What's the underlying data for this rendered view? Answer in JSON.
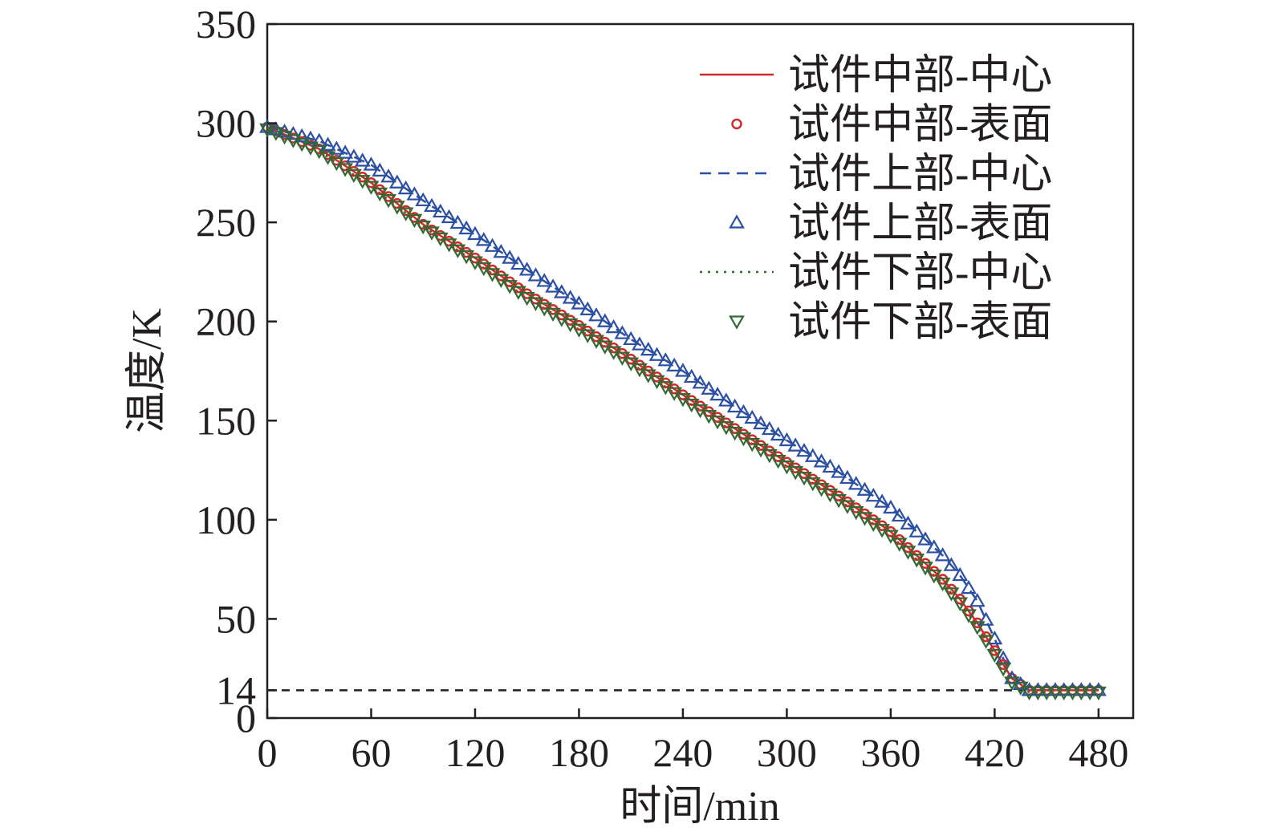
{
  "chart_data": {
    "type": "line",
    "title": "",
    "xlabel": "时间/min",
    "ylabel": "温度/K",
    "xlim": [
      0,
      500
    ],
    "ylim": [
      0,
      350
    ],
    "xticks": [
      0,
      60,
      120,
      180,
      240,
      300,
      360,
      420,
      480
    ],
    "yticks": [
      0,
      14,
      50,
      100,
      150,
      200,
      250,
      300,
      350
    ],
    "grid": false,
    "legend_position": "top-right",
    "reference_lines": [
      {
        "y": 14,
        "style": "dashed",
        "color": "#231f20"
      }
    ],
    "series": [
      {
        "name": "试件中部-中心",
        "style": "solid-line",
        "color": "#d12a2a",
        "x": [
          0,
          30,
          60,
          90,
          120,
          150,
          180,
          210,
          240,
          270,
          300,
          330,
          360,
          390,
          400,
          410,
          420,
          430,
          440,
          450,
          460,
          470,
          480
        ],
        "y": [
          298,
          287,
          270,
          249,
          232,
          214,
          198,
          181,
          163,
          146,
          129,
          112,
          94,
          70,
          60,
          48,
          34,
          20,
          14,
          14,
          14,
          14,
          14
        ]
      },
      {
        "name": "试件中部-表面",
        "style": "circle-marker",
        "color": "#d12a2a",
        "x": [
          0,
          30,
          60,
          90,
          120,
          150,
          180,
          210,
          240,
          270,
          300,
          330,
          360,
          390,
          400,
          410,
          420,
          430,
          440,
          450,
          460,
          470,
          480
        ],
        "y": [
          298,
          287,
          270,
          249,
          232,
          214,
          198,
          181,
          163,
          146,
          129,
          112,
          94,
          70,
          60,
          48,
          34,
          20,
          14,
          14,
          14,
          14,
          14
        ]
      },
      {
        "name": "试件上部-中心",
        "style": "dashed-line",
        "color": "#2b4fa3",
        "x": [
          0,
          30,
          60,
          90,
          120,
          150,
          180,
          210,
          240,
          270,
          300,
          330,
          360,
          390,
          400,
          410,
          420,
          430,
          440,
          450,
          460,
          470,
          480
        ],
        "y": [
          298,
          291,
          279,
          261,
          244,
          226,
          209,
          191,
          175,
          157,
          140,
          124,
          106,
          82,
          72,
          59,
          40,
          20,
          14,
          14,
          14,
          14,
          14
        ]
      },
      {
        "name": "试件上部-表面",
        "style": "triangle-up-marker",
        "color": "#2b4fa3",
        "x": [
          0,
          30,
          60,
          90,
          120,
          150,
          180,
          210,
          240,
          270,
          300,
          330,
          360,
          390,
          400,
          410,
          420,
          430,
          440,
          450,
          460,
          470,
          480
        ],
        "y": [
          298,
          291,
          279,
          261,
          244,
          226,
          209,
          191,
          175,
          157,
          140,
          124,
          106,
          82,
          72,
          59,
          40,
          20,
          14,
          14,
          14,
          14,
          14
        ]
      },
      {
        "name": "试件下部-中心",
        "style": "dotted-line",
        "color": "#2f6b32",
        "x": [
          0,
          30,
          60,
          90,
          120,
          150,
          180,
          210,
          240,
          270,
          300,
          330,
          360,
          390,
          400,
          410,
          420,
          430,
          440,
          450,
          460,
          470,
          480
        ],
        "y": [
          297,
          286,
          268,
          248,
          230,
          212,
          196,
          179,
          161,
          144,
          127,
          110,
          92,
          68,
          58,
          46,
          32,
          18,
          13,
          13,
          13,
          13,
          13
        ]
      },
      {
        "name": "试件下部-表面",
        "style": "triangle-down-marker",
        "color": "#2f6b32",
        "x": [
          0,
          30,
          60,
          90,
          120,
          150,
          180,
          210,
          240,
          270,
          300,
          330,
          360,
          390,
          400,
          410,
          420,
          430,
          440,
          450,
          460,
          470,
          480
        ],
        "y": [
          297,
          286,
          268,
          248,
          230,
          212,
          196,
          179,
          161,
          144,
          127,
          110,
          92,
          68,
          58,
          46,
          32,
          18,
          13,
          13,
          13,
          13,
          13
        ]
      }
    ]
  }
}
